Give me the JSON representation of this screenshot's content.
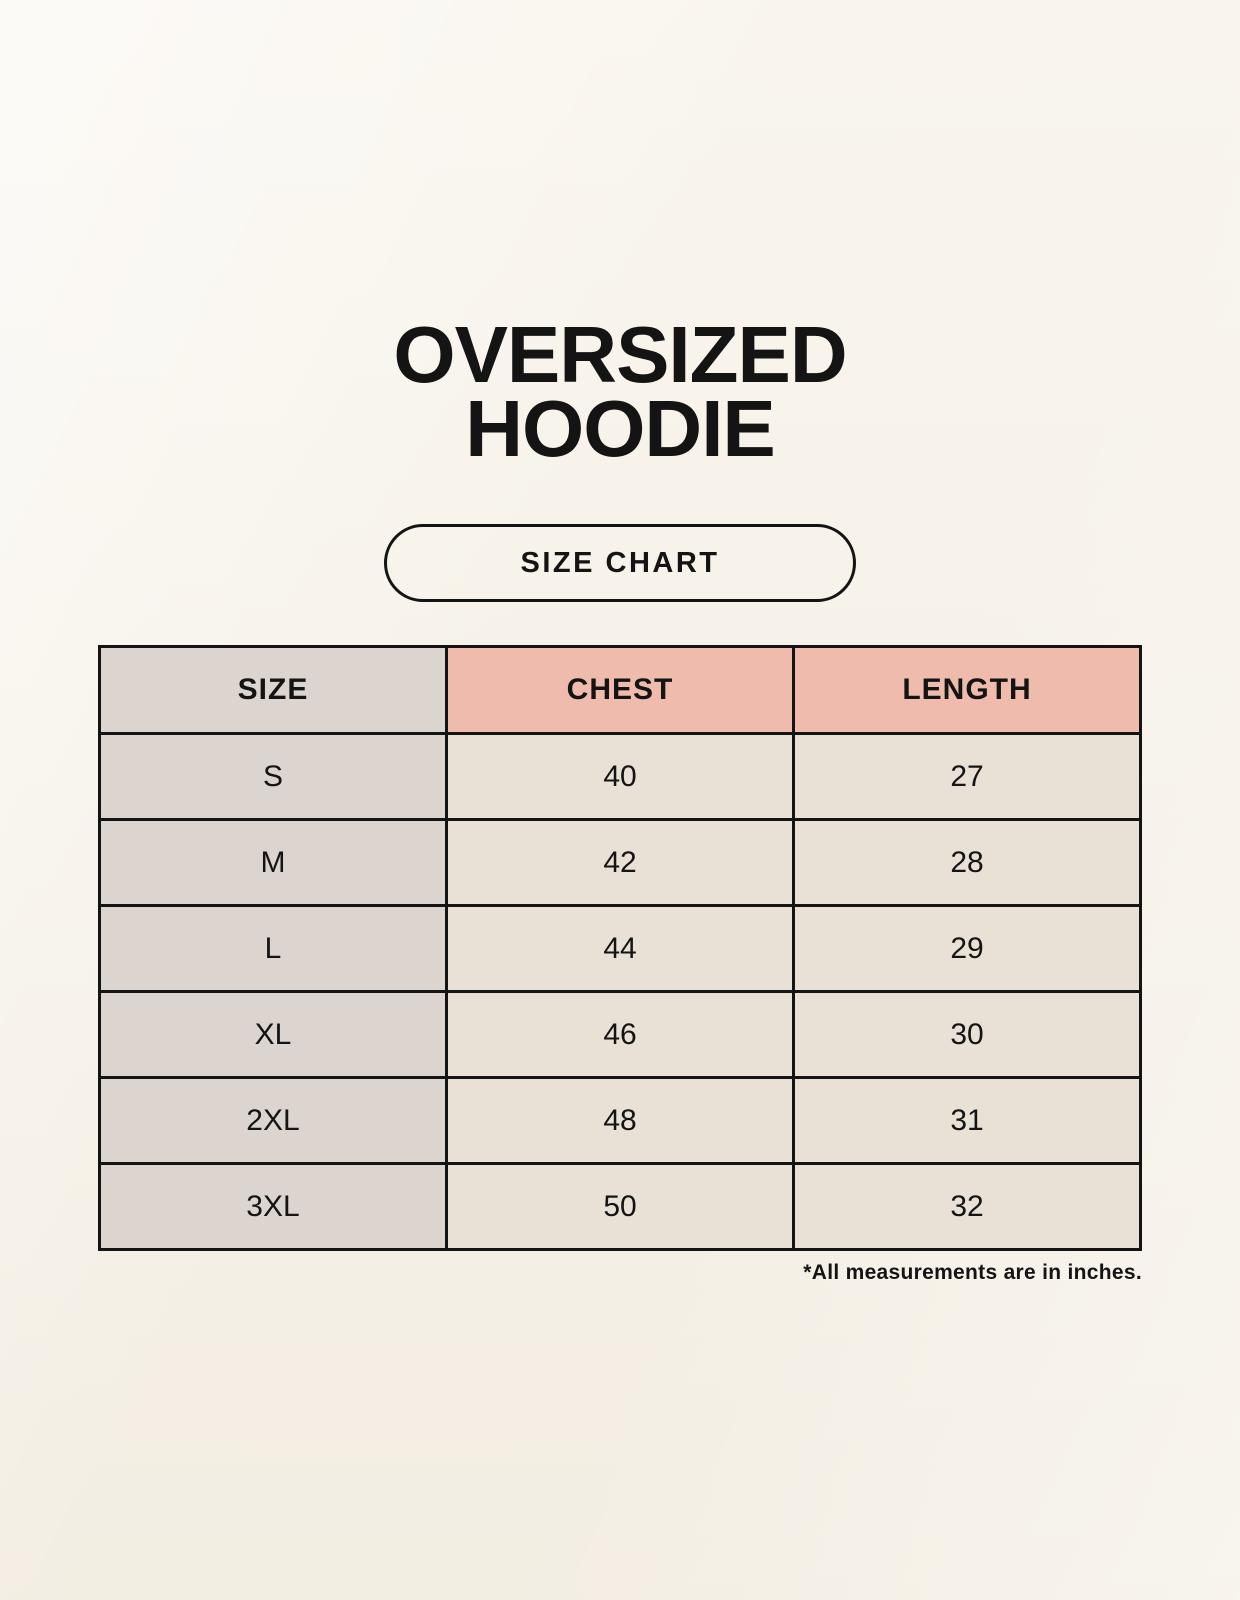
{
  "header": {
    "title_line1": "OVERSIZED",
    "title_line2": "HOODIE",
    "button_label": "SIZE CHART"
  },
  "chart_data": {
    "type": "table",
    "title": "OVERSIZED HOODIE",
    "subtitle": "SIZE CHART",
    "columns": [
      "SIZE",
      "CHEST",
      "LENGTH"
    ],
    "rows": [
      [
        "S",
        "40",
        "27"
      ],
      [
        "M",
        "42",
        "28"
      ],
      [
        "L",
        "44",
        "29"
      ],
      [
        "XL",
        "46",
        "30"
      ],
      [
        "2XL",
        "48",
        "31"
      ],
      [
        "3XL",
        "50",
        "32"
      ]
    ],
    "units": "inches",
    "layout": "first column gray, CHEST/LENGTH headers pink, grid with black borders"
  },
  "footnote": "*All measurements are in inches.",
  "colors": {
    "bg": "#f7f2e8",
    "ink": "#141414",
    "pink": "#eebbac",
    "gray": "#dcd5cf",
    "cell": "#e9e1d6"
  }
}
